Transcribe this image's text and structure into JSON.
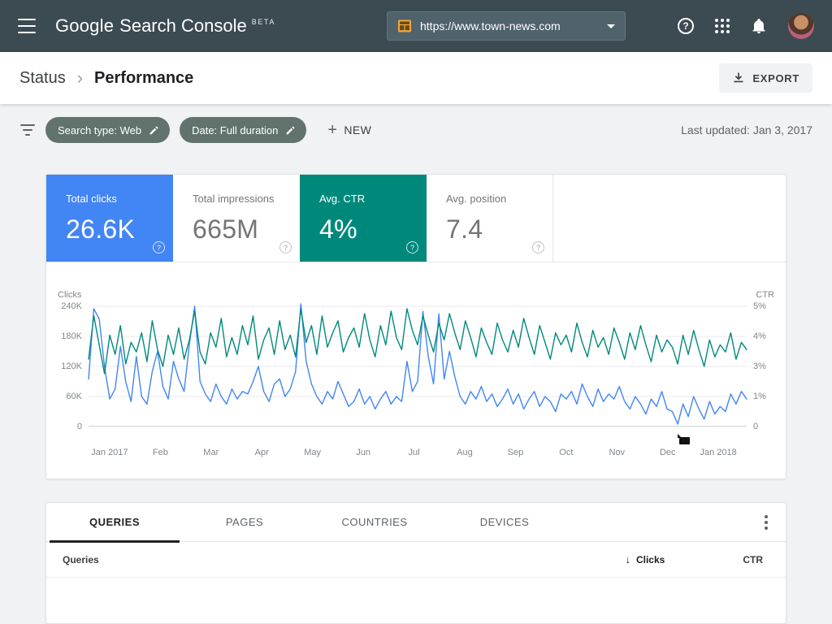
{
  "topbar": {
    "logo_google": "Google",
    "logo_product": "Search Console",
    "logo_beta": "BETA",
    "property": {
      "value": "https://www.town-news.com"
    }
  },
  "breadcrumb": {
    "parent": "Status",
    "current": "Performance",
    "export_label": "EXPORT"
  },
  "filters": {
    "chips": [
      {
        "label": "Search type: Web"
      },
      {
        "label": "Date: Full duration"
      }
    ],
    "new_label": "NEW",
    "last_updated": "Last updated: Jan 3, 2017"
  },
  "metrics": [
    {
      "label": "Total clicks",
      "value": "26.6K",
      "selected": true,
      "color": "#4285f4"
    },
    {
      "label": "Total impressions",
      "value": "665M",
      "selected": false,
      "color": "#ffffff"
    },
    {
      "label": "Avg. CTR",
      "value": "4%",
      "selected": true,
      "color": "#00897b"
    },
    {
      "label": "Avg. position",
      "value": "7.4",
      "selected": false,
      "color": "#ffffff"
    }
  ],
  "chart_data": {
    "type": "line",
    "left_axis": {
      "label": "Clicks",
      "ticks": [
        "240K",
        "180K",
        "120K",
        "60K",
        "0"
      ],
      "max": 240000
    },
    "right_axis": {
      "label": "CTR",
      "ticks": [
        "5%",
        "4%",
        "3%",
        "1%",
        "0"
      ],
      "max": 5
    },
    "x_ticks": [
      "Jan 2017",
      "Feb",
      "Mar",
      "Apr",
      "May",
      "Jun",
      "Jul",
      "Aug",
      "Sep",
      "Oct",
      "Nov",
      "Dec",
      "Jan 2018"
    ],
    "grid": true,
    "series": [
      {
        "name": "Clicks",
        "axis": "left",
        "color": "#4285f4",
        "values": [
          95000,
          235000,
          215000,
          120000,
          55000,
          75000,
          160000,
          90000,
          50000,
          140000,
          60000,
          45000,
          110000,
          150000,
          80000,
          55000,
          130000,
          95000,
          70000,
          165000,
          240000,
          90000,
          65000,
          50000,
          85000,
          60000,
          45000,
          75000,
          55000,
          70000,
          65000,
          90000,
          120000,
          70000,
          50000,
          85000,
          95000,
          60000,
          75000,
          110000,
          245000,
          130000,
          85000,
          60000,
          45000,
          70000,
          55000,
          90000,
          65000,
          40000,
          50000,
          75000,
          45000,
          60000,
          35000,
          55000,
          70000,
          45000,
          60000,
          50000,
          130000,
          70000,
          90000,
          230000,
          140000,
          85000,
          225000,
          95000,
          150000,
          100000,
          60000,
          45000,
          70000,
          55000,
          80000,
          50000,
          65000,
          40000,
          55000,
          75000,
          45000,
          65000,
          35000,
          55000,
          70000,
          40000,
          60000,
          50000,
          30000,
          65000,
          55000,
          70000,
          45000,
          85000,
          60000,
          40000,
          75000,
          50000,
          65000,
          55000,
          80000,
          50000,
          35000,
          60000,
          45000,
          25000,
          55000,
          40000,
          70000,
          35000,
          30000,
          5000,
          45000,
          20000,
          60000,
          35000,
          15000,
          50000,
          25000,
          40000,
          30000,
          65000,
          45000,
          70000,
          55000
        ]
      },
      {
        "name": "CTR",
        "axis": "right",
        "color": "#00897b",
        "values": [
          2.8,
          4.6,
          3.4,
          2.2,
          3.8,
          3.0,
          4.2,
          2.6,
          3.5,
          3.1,
          3.9,
          2.7,
          4.4,
          3.2,
          2.5,
          3.8,
          3.0,
          4.1,
          2.8,
          3.6,
          4.8,
          3.1,
          2.6,
          3.9,
          3.3,
          4.5,
          2.9,
          3.7,
          3.0,
          4.2,
          3.4,
          4.6,
          2.8,
          3.6,
          4.1,
          3.0,
          4.4,
          3.2,
          3.8,
          2.9,
          4.9,
          3.5,
          4.2,
          3.0,
          4.6,
          3.3,
          3.9,
          4.4,
          3.1,
          3.7,
          4.1,
          3.3,
          4.7,
          3.6,
          2.9,
          4.2,
          3.4,
          4.8,
          3.7,
          3.2,
          4.9,
          4.0,
          3.4,
          4.6,
          3.8,
          3.1,
          4.3,
          3.6,
          4.7,
          3.9,
          3.2,
          4.4,
          3.7,
          2.9,
          4.1,
          3.5,
          3.0,
          4.3,
          3.6,
          3.1,
          4.0,
          3.3,
          4.5,
          3.7,
          3.0,
          4.2,
          3.5,
          2.8,
          3.9,
          3.4,
          3.8,
          3.1,
          4.3,
          3.5,
          2.9,
          4.0,
          3.3,
          3.7,
          3.0,
          4.1,
          3.5,
          2.8,
          3.9,
          3.2,
          4.2,
          3.4,
          2.7,
          3.8,
          3.1,
          3.6,
          3.3,
          2.6,
          3.8,
          3.0,
          4.0,
          3.2,
          2.5,
          3.6,
          2.9,
          3.4,
          3.1,
          3.9,
          2.8,
          3.5,
          3.2
        ]
      }
    ]
  },
  "table": {
    "tabs": [
      {
        "label": "QUERIES",
        "active": true
      },
      {
        "label": "PAGES",
        "active": false
      },
      {
        "label": "COUNTRIES",
        "active": false
      },
      {
        "label": "DEVICES",
        "active": false
      }
    ],
    "header": {
      "queries": "Queries",
      "clicks": "Clicks",
      "ctr": "CTR"
    }
  },
  "icons": {
    "help_glyph": "?",
    "plus_glyph": "+",
    "sort_desc_glyph": "↓",
    "breadcrumb_sep_glyph": "›"
  },
  "colors": {
    "topbar_bg": "#3c4a52",
    "accent_blue": "#4285f4",
    "accent_teal": "#00897b",
    "chip_bg": "#62736d",
    "page_bg": "#f0f2f3"
  }
}
